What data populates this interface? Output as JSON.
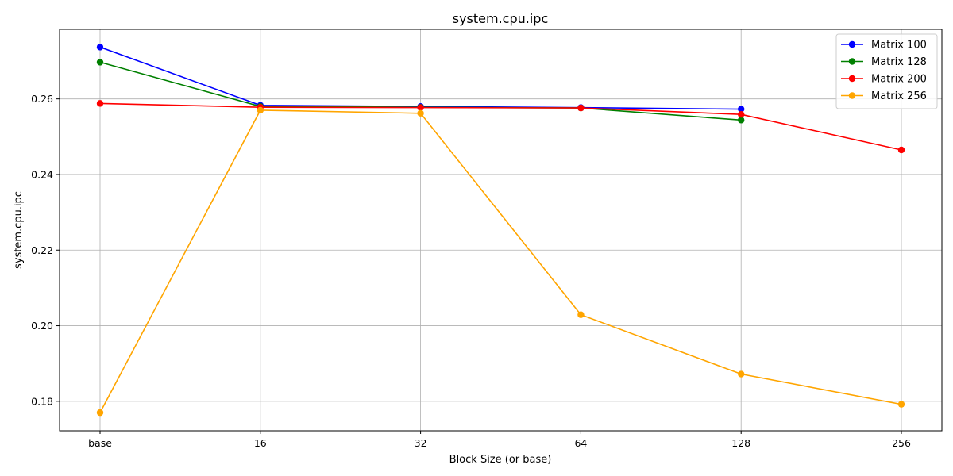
{
  "chart_data": {
    "type": "line",
    "title": "system.cpu.ipc",
    "xlabel": "Block Size (or base)",
    "ylabel": "system.cpu.ipc",
    "categories": [
      "base",
      "16",
      "32",
      "64",
      "128",
      "256"
    ],
    "yticks": [
      "0.18",
      "0.20",
      "0.22",
      "0.24",
      "0.26"
    ],
    "ylim": [
      0.1722,
      0.2784
    ],
    "grid": true,
    "legend_position": "top-right",
    "series": [
      {
        "name": "Matrix 100",
        "color": "#0000ff",
        "values": [
          0.2737,
          0.2583,
          0.258,
          0.2577,
          0.2573,
          null
        ]
      },
      {
        "name": "Matrix 128",
        "color": "#008000",
        "values": [
          0.2697,
          0.258,
          0.2578,
          0.2576,
          0.2544,
          null
        ]
      },
      {
        "name": "Matrix 200",
        "color": "#ff0000",
        "values": [
          0.2588,
          0.2578,
          0.2577,
          0.2576,
          0.2559,
          0.2465
        ]
      },
      {
        "name": "Matrix 256",
        "color": "#ffa500",
        "values": [
          0.177,
          0.257,
          0.2562,
          0.2029,
          0.1872,
          0.1792
        ]
      }
    ]
  }
}
